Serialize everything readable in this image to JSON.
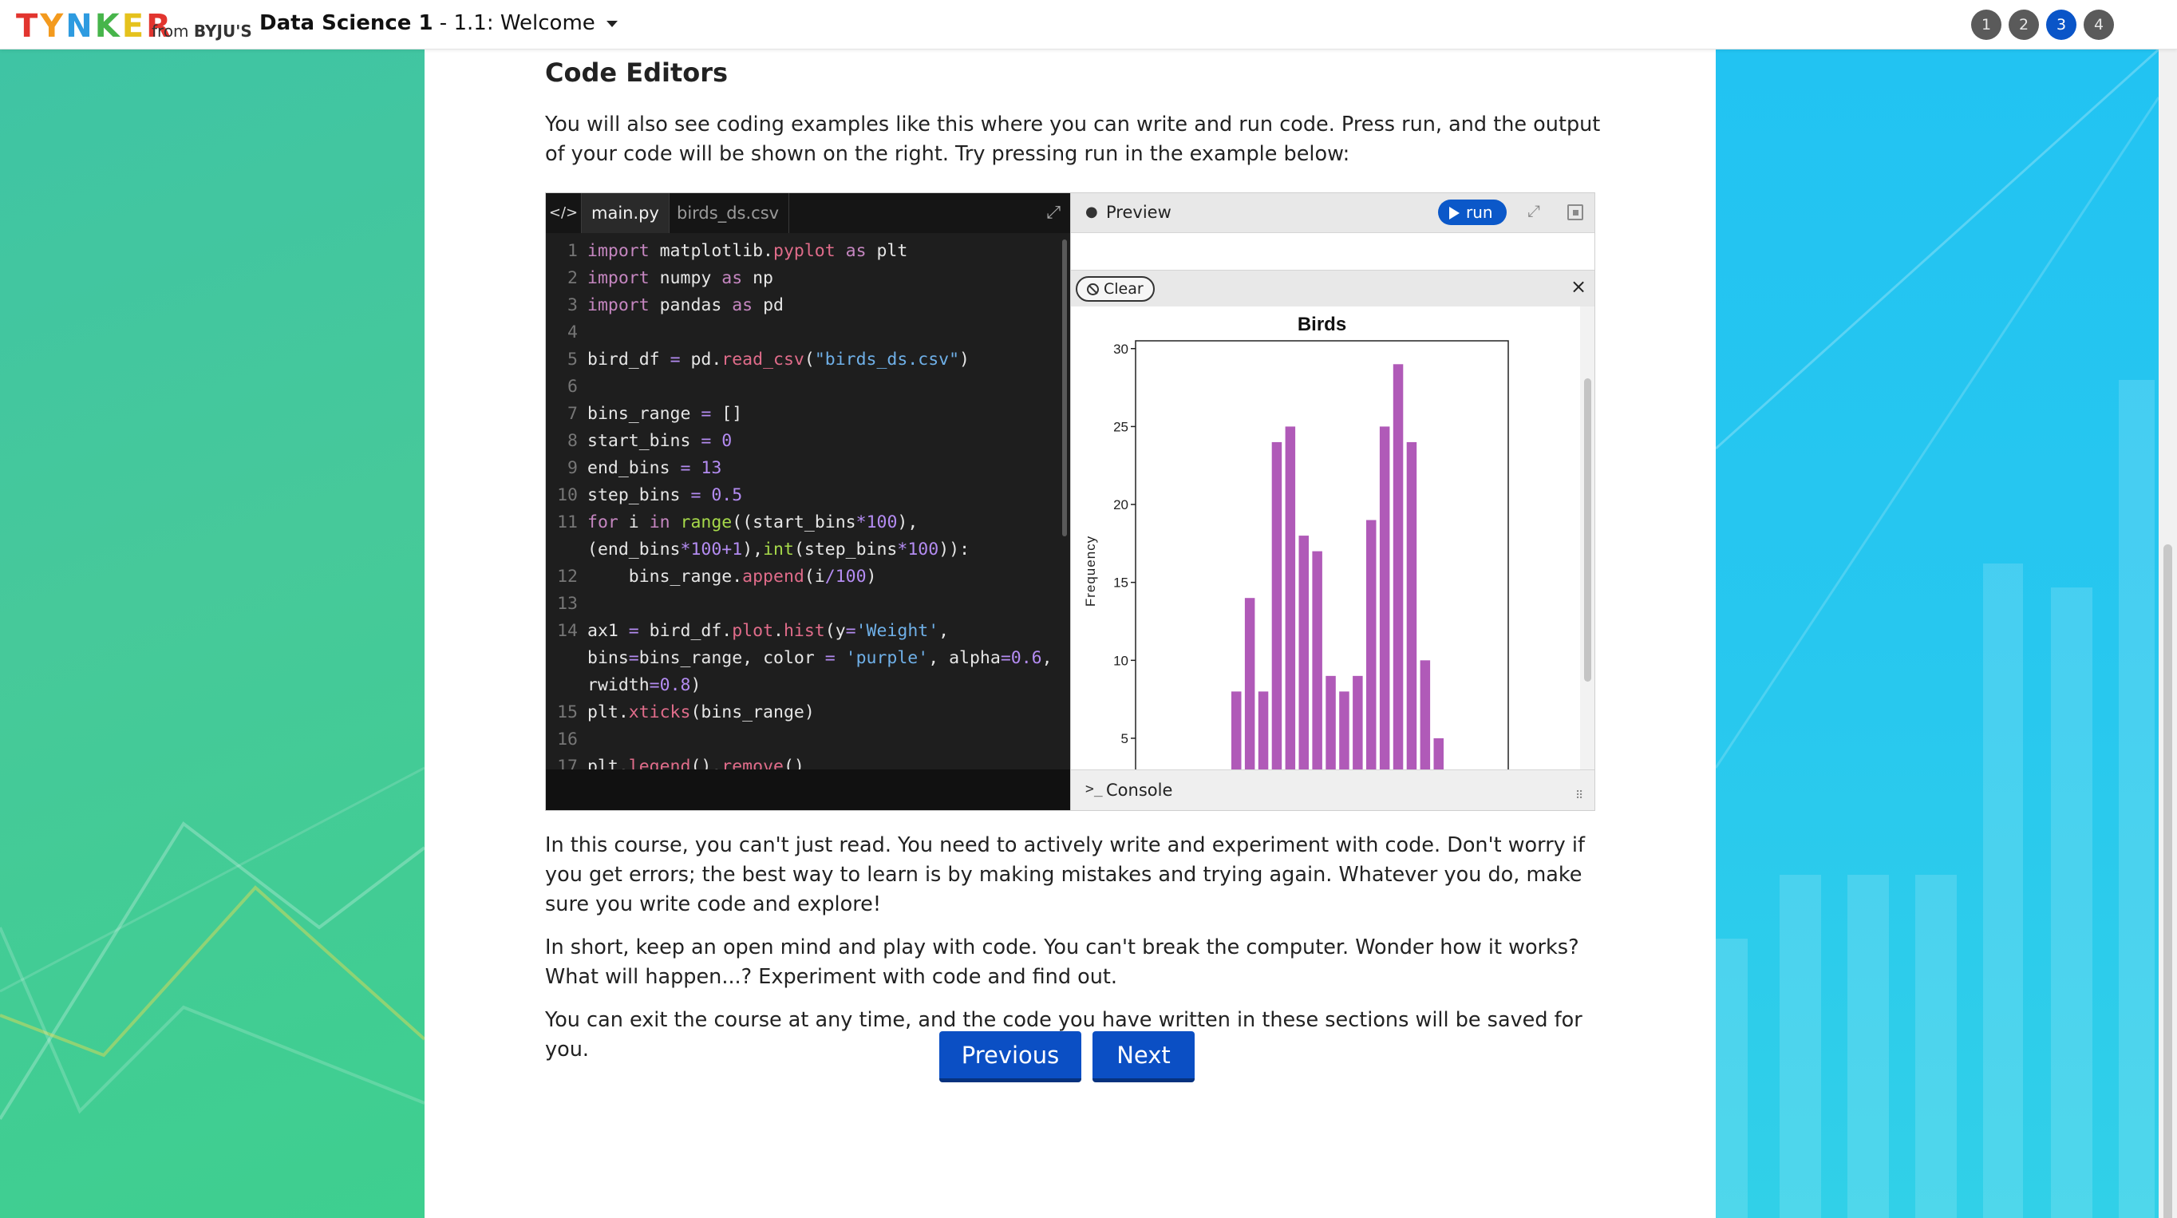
{
  "header": {
    "logo_letters": [
      "T",
      "Y",
      "N",
      "K",
      "E",
      "R"
    ],
    "logo_from": "from",
    "logo_brand": "BYJU'S",
    "course_name": "Data Science 1",
    "course_sep": " - ",
    "lesson": "1.1: Welcome",
    "steps": [
      "1",
      "2",
      "3",
      "4"
    ],
    "active_step": "3"
  },
  "content": {
    "section_title": "Code Editors",
    "intro": "You will also see coding examples like this where you can write and run code. Press run, and the output of your code will be shown on the right. Try pressing run in the example below:",
    "para1": "In this course, you can't just read. You need to actively write and experiment with code. Don't worry if you get errors; the best way to learn is by making mistakes and trying again. Whatever you do, make sure you write code and explore!",
    "para2": "In short, keep an open mind and play with code. You can't break the computer. Wonder how it works? What will happen...? Experiment with code and find out.",
    "para3": "You can exit the course at any time, and the code you have written in these sections will be saved for you."
  },
  "editor": {
    "tab_icon": "</>",
    "tabs": [
      "main.py",
      "birds_ds.csv"
    ],
    "active_tab": "main.py"
  },
  "output": {
    "preview_label": "Preview",
    "run_label": "run",
    "clear_label": "Clear",
    "console_label": "Console"
  },
  "nav": {
    "previous": "Previous",
    "next": "Next"
  },
  "colors": {
    "accent_blue": "#0b4fc4",
    "bar_purple": "#b05ab8",
    "left_bg": "#46c99a",
    "right_bg": "#22c3f2"
  },
  "chart_data": {
    "type": "bar",
    "title": "Birds",
    "ylabel": "Frequency",
    "xlabel": "",
    "ylim_visible": [
      3,
      30.5
    ],
    "yticks": [
      5,
      10,
      15,
      20,
      25,
      30
    ],
    "series": [
      {
        "values": [
          8,
          14,
          8,
          24,
          25,
          18,
          17,
          9,
          8,
          9,
          19,
          25,
          29,
          24,
          10,
          5
        ]
      }
    ]
  }
}
